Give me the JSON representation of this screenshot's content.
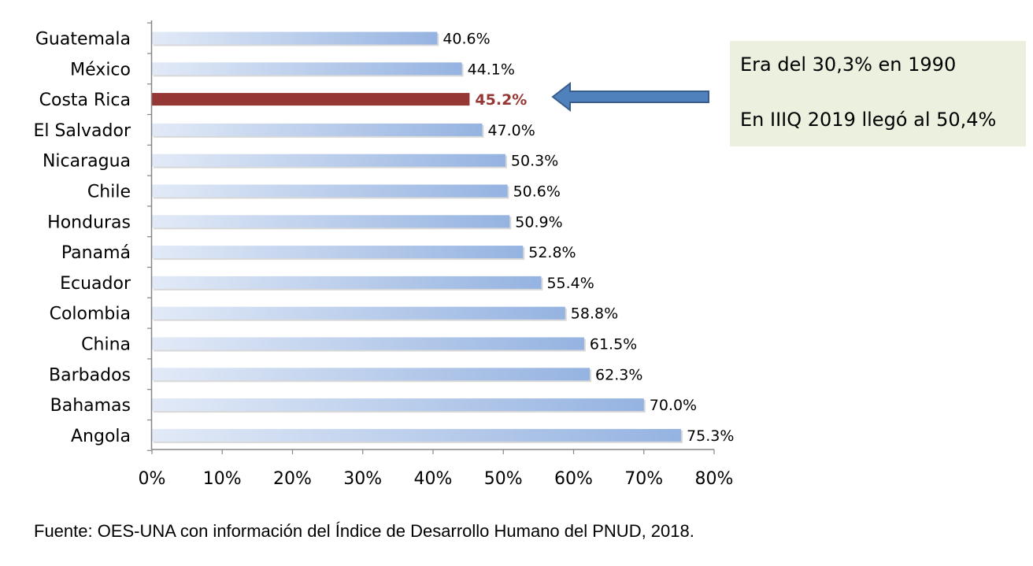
{
  "chart_data": {
    "type": "bar",
    "orientation": "horizontal",
    "categories": [
      "Guatemala",
      "México",
      "Costa Rica",
      "El Salvador",
      "Nicaragua",
      "Chile",
      "Honduras",
      "Panamá",
      "Ecuador",
      "Colombia",
      "China",
      "Barbados",
      "Bahamas",
      "Angola"
    ],
    "values": [
      40.6,
      44.1,
      45.2,
      47.0,
      50.3,
      50.6,
      50.9,
      52.8,
      55.4,
      58.8,
      61.5,
      62.3,
      70.0,
      75.3
    ],
    "value_labels": [
      "40.6%",
      "44.1%",
      "45.2%",
      "47.0%",
      "50.3%",
      "50.6%",
      "50.9%",
      "52.8%",
      "55.4%",
      "58.8%",
      "61.5%",
      "62.3%",
      "70.0%",
      "75.3%"
    ],
    "highlight": "Costa Rica",
    "xlim": [
      0,
      80
    ],
    "x_ticks": [
      0,
      10,
      20,
      30,
      40,
      50,
      60,
      70,
      80
    ],
    "x_tick_labels": [
      "0%",
      "10%",
      "20%",
      "30%",
      "40%",
      "50%",
      "60%",
      "70%",
      "80%"
    ],
    "grid": false,
    "legend": "none",
    "colors": {
      "bar_start": "#e2eaf7",
      "bar_end": "#95b3e1",
      "highlight_bar": "#953735",
      "axis": "#868686"
    }
  },
  "annotation": {
    "line1": "Era del 30,3% en 1990",
    "line2": "En IIIQ 2019 llegó al 50,4%",
    "background": "#ebf1de"
  },
  "arrow": {
    "icon": "left-arrow-icon",
    "fill": "#4f81bd",
    "stroke": "#385d8a"
  },
  "source": "Fuente: OES-UNA con información del Índice de Desarrollo Humano del PNUD, 2018."
}
